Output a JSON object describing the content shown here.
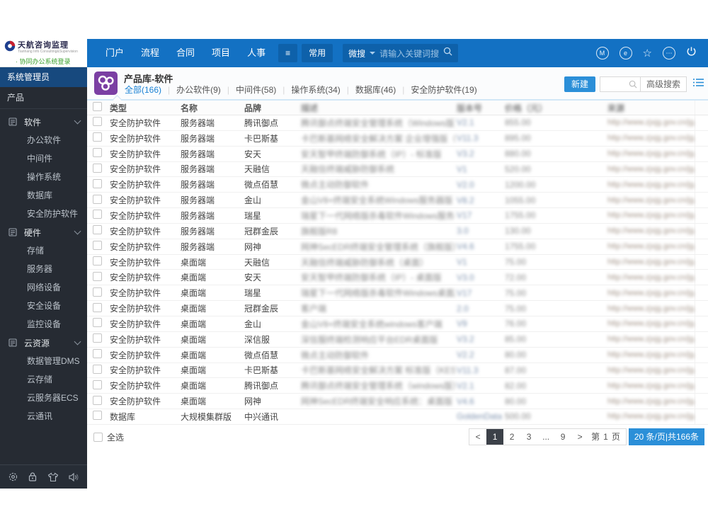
{
  "header": {
    "logo": {
      "title": "天航咨询监理",
      "subtitle": "Tianhang Info Consulting&Supervision",
      "login": "· 协同办公系统登录"
    },
    "nav": [
      "门户",
      "流程",
      "合同",
      "项目",
      "人事"
    ],
    "menu": {
      "common_label": "常用"
    },
    "search": {
      "prefix": "微搜",
      "placeholder": "请输入关键词搜"
    },
    "icons": [
      "m-badge",
      "message",
      "star",
      "more",
      "power"
    ]
  },
  "sidebar": {
    "role": "系统管理员",
    "root": "产品",
    "groups": [
      {
        "label": "软件",
        "items": [
          "办公软件",
          "中间件",
          "操作系统",
          "数据库",
          "安全防护软件"
        ]
      },
      {
        "label": "硬件",
        "items": [
          "存储",
          "服务器",
          "网络设备",
          "安全设备",
          "监控设备"
        ]
      },
      {
        "label": "云资源",
        "items": [
          "数据管理DMS",
          "云存储",
          "云服务器ECS",
          "云通讯"
        ]
      }
    ],
    "bottom_icons": [
      "gear",
      "lock",
      "skin",
      "speaker"
    ]
  },
  "main": {
    "title": "产品库-软件",
    "tabs": [
      {
        "label": "全部(166)",
        "active": true
      },
      {
        "label": "办公软件(9)",
        "active": false
      },
      {
        "label": "中间件(58)",
        "active": false
      },
      {
        "label": "操作系统(34)",
        "active": false
      },
      {
        "label": "数据库(46)",
        "active": false
      },
      {
        "label": "安全防护软件(19)",
        "active": false
      }
    ],
    "toolbar": {
      "new_button": "新建",
      "advanced_search": "高级搜索"
    },
    "table": {
      "columns": [
        "类型",
        "名称",
        "品牌",
        "描述",
        "版本号",
        "价格（元）",
        "来源"
      ],
      "blurred_column_indexes": [
        3,
        4,
        5,
        6
      ],
      "rows": [
        [
          "安全防护软件",
          "服务器端",
          "腾讯御点",
          "腾讯御点终端安全管理系统（Windows版）",
          "V2.1",
          "855.00",
          "http://www.zjxjg.gov.cn/jg/"
        ],
        [
          "安全防护软件",
          "服务器端",
          "卡巴斯基",
          "卡巴斯基网络安全解决方案 企业增强版（KE...",
          "V11.3",
          "895.00",
          "http://www.zjxjg.gov.cn/jg/"
        ],
        [
          "安全防护软件",
          "服务器端",
          "安天",
          "安天智甲终端防御系统（IP）- 标准版",
          "V3.2",
          "880.00",
          "http://www.zjxjg.gov.cn/jg/"
        ],
        [
          "安全防护软件",
          "服务器端",
          "天融信",
          "天融信终端威胁防御系统",
          "V1",
          "520.00",
          "http://www.zjxjg.gov.cn/jg/"
        ],
        [
          "安全防护软件",
          "服务器端",
          "微点佰慧",
          "微点主动防御软件",
          "V2.0",
          "1200.00",
          "http://www.zjxjg.gov.cn/jg/"
        ],
        [
          "安全防护软件",
          "服务器端",
          "金山",
          "金山V8+终端安全系统Windows服务器版",
          "V8.2",
          "1055.00",
          "http://www.zjxjg.gov.cn/jg/"
        ],
        [
          "安全防护软件",
          "服务器端",
          "瑞星",
          "瑞星下一代网络版杀毒软件Windows服务器",
          "V17",
          "1755.00",
          "http://www.zjxjg.gov.cn/jg/"
        ],
        [
          "安全防护软件",
          "服务器端",
          "冠群金辰",
          "旗舰版R8",
          "3.0",
          "130.00",
          "http://www.zjxjg.gov.cn/jg/"
        ],
        [
          "安全防护软件",
          "服务器端",
          "网神",
          "网神SecEDR终端安全管理系统（旗舰版）",
          "V4.6",
          "1755.00",
          "http://www.zjxjg.gov.cn/jg/"
        ],
        [
          "安全防护软件",
          "桌面端",
          "天融信",
          "天融信终端威胁防御系统（桌面）",
          "V1",
          "75.00",
          "http://www.zjxjg.gov.cn/jg/"
        ],
        [
          "安全防护软件",
          "桌面端",
          "安天",
          "安天智甲终端防御系统（IP）- 桌面版",
          "V3.0",
          "72.00",
          "http://www.zjxjg.gov.cn/jg/"
        ],
        [
          "安全防护软件",
          "桌面端",
          "瑞星",
          "瑞星下一代网络版杀毒软件Windows桌面版",
          "V17",
          "75.00",
          "http://www.zjxjg.gov.cn/jg/"
        ],
        [
          "安全防护软件",
          "桌面端",
          "冠群金辰",
          "客户端",
          "2.0",
          "75.00",
          "http://www.zjxjg.gov.cn/jg/"
        ],
        [
          "安全防护软件",
          "桌面端",
          "金山",
          "金山V8+终端安全系统windows客户端",
          "V9",
          "76.00",
          "http://www.zjxjg.gov.cn/jg/"
        ],
        [
          "安全防护软件",
          "桌面端",
          "深信服",
          "深信服终端检测响应平台EDR桌面版",
          "V3.2",
          "85.00",
          "http://www.zjxjg.gov.cn/jg/"
        ],
        [
          "安全防护软件",
          "桌面端",
          "微点佰慧",
          "微点主动防御软件",
          "V2.2",
          "80.00",
          "http://www.zjxjg.gov.cn/jg/"
        ],
        [
          "安全防护软件",
          "桌面端",
          "卡巴斯基",
          "卡巴斯基网络安全解决方案 标准版（KES）...",
          "V11.3",
          "87.00",
          "http://www.zjxjg.gov.cn/jg/"
        ],
        [
          "安全防护软件",
          "桌面端",
          "腾讯御点",
          "腾讯御点终端安全管理系统（windows版）V2.1",
          "V2.1",
          "82.00",
          "http://www.zjxjg.gov.cn/jg/"
        ],
        [
          "安全防护软件",
          "桌面端",
          "网神",
          "网神SecEDR终端安全响应系统：桌面版",
          "V4.6",
          "80.00",
          "http://www.zjxjg.gov.cn/jg/"
        ],
        [
          "数据库",
          "大规模集群版",
          "中兴通讯",
          "",
          "GoldenData s...",
          "500.00",
          "http://www.zjxjg.gov.cn/jg/"
        ]
      ]
    },
    "footer": {
      "select_all": "全选",
      "pagination": {
        "prev": "<",
        "pages": [
          "1",
          "2",
          "3",
          "...",
          "9"
        ],
        "current": "1",
        "next": ">",
        "jump_prefix": "第",
        "jump_page": "1",
        "jump_suffix": "页",
        "page_size": "20 条/页|共166条"
      }
    }
  },
  "colors": {
    "header_blue": "#1371c3",
    "header_dark_blue": "#0e61aa",
    "sidebar_dark": "#262b33",
    "role_bar_blue": "#17497e",
    "accent_blue": "#2b8fd8",
    "active_tab_blue": "#1a82d4",
    "active_page_dark": "#3c4149",
    "login_green": "#3aa02c",
    "app_icon_purple": "#7b3fa3"
  }
}
